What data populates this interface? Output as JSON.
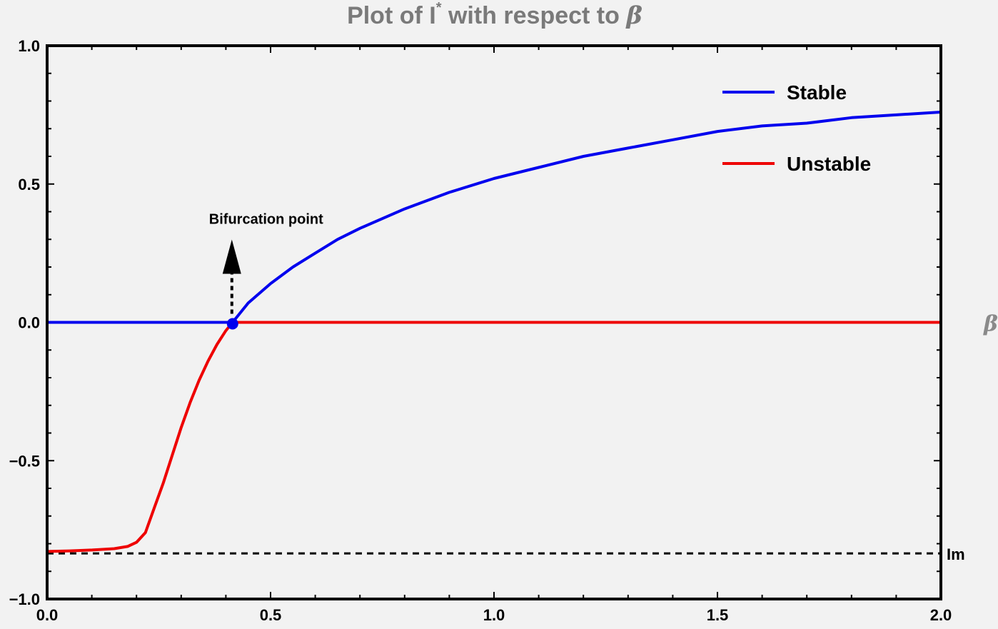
{
  "title": {
    "text": "Plot of I",
    "superscript": "*",
    "middle": " with respect to ",
    "symbol": "β"
  },
  "chart_data": {
    "type": "line",
    "xlabel": "β",
    "ylabel": "",
    "xlim": [
      0,
      2
    ],
    "ylim": [
      -1,
      1
    ],
    "x_ticks": [
      0.0,
      0.5,
      1.0,
      1.5,
      2.0
    ],
    "x_tick_labels": [
      "0.0",
      "0.5",
      "1.0",
      "1.5",
      "2.0"
    ],
    "y_ticks": [
      -1.0,
      -0.5,
      0.0,
      0.5,
      1.0
    ],
    "y_tick_labels": [
      "−1.0",
      "−0.5",
      "0.0",
      "0.5",
      "1.0"
    ],
    "legend_position": "top-right",
    "series": [
      {
        "name": "Stable",
        "color": "#0000ee",
        "segments": [
          {
            "x": [
              0.0,
              0.415
            ],
            "y": [
              0.0,
              0.0
            ]
          },
          {
            "x": [
              0.415,
              0.45,
              0.5,
              0.55,
              0.6,
              0.65,
              0.7,
              0.8,
              0.9,
              1.0,
              1.1,
              1.2,
              1.3,
              1.4,
              1.5,
              1.6,
              1.7,
              1.8,
              1.9,
              2.0
            ],
            "y": [
              0.0,
              0.07,
              0.14,
              0.2,
              0.25,
              0.3,
              0.34,
              0.41,
              0.47,
              0.52,
              0.56,
              0.6,
              0.63,
              0.66,
              0.69,
              0.71,
              0.72,
              0.74,
              0.75,
              0.76
            ]
          }
        ]
      },
      {
        "name": "Unstable",
        "color": "#ee0000",
        "segments": [
          {
            "x": [
              0.0,
              0.05,
              0.1,
              0.15,
              0.18,
              0.2,
              0.22,
              0.24,
              0.26,
              0.28,
              0.3,
              0.32,
              0.34,
              0.36,
              0.38,
              0.4,
              0.415
            ],
            "y": [
              -0.828,
              -0.826,
              -0.823,
              -0.818,
              -0.81,
              -0.795,
              -0.76,
              -0.67,
              -0.58,
              -0.48,
              -0.38,
              -0.29,
              -0.21,
              -0.14,
              -0.08,
              -0.03,
              0.0
            ]
          },
          {
            "x": [
              0.415,
              2.0
            ],
            "y": [
              0.0,
              0.0
            ]
          }
        ]
      }
    ],
    "reference_line": {
      "label": "Im",
      "y": -0.835,
      "style": "dashed"
    },
    "annotation": {
      "text": "Bifurcation point",
      "x": 0.415,
      "y": 0.0
    }
  }
}
